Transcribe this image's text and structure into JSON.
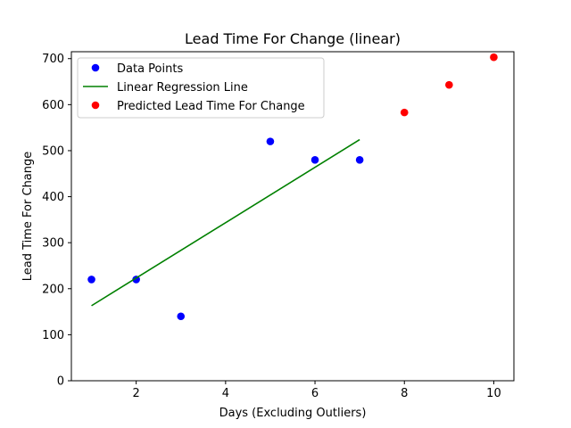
{
  "chart_data": {
    "type": "scatter",
    "title": "Lead Time For Change (linear)",
    "xlabel": "Days (Excluding Outliers)",
    "ylabel": "Lead Time For Change",
    "xlim": [
      0.55,
      10.45
    ],
    "ylim": [
      0,
      715
    ],
    "xticks": [
      2,
      4,
      6,
      8,
      10
    ],
    "yticks": [
      0,
      100,
      200,
      300,
      400,
      500,
      600,
      700
    ],
    "legend_position": "top-left",
    "grid": false,
    "series": [
      {
        "name": "Data Points",
        "kind": "scatter",
        "color": "#0000ff",
        "x": [
          1,
          2,
          3,
          5,
          6,
          7
        ],
        "y": [
          220,
          220,
          140,
          520,
          480,
          480
        ]
      },
      {
        "name": "Linear Regression Line",
        "kind": "line",
        "color": "#008000",
        "x": [
          1,
          7
        ],
        "y": [
          163,
          524
        ]
      },
      {
        "name": "Predicted Lead Time For Change",
        "kind": "scatter",
        "color": "#ff0000",
        "x": [
          8,
          9,
          10
        ],
        "y": [
          583,
          643,
          703
        ]
      }
    ]
  }
}
